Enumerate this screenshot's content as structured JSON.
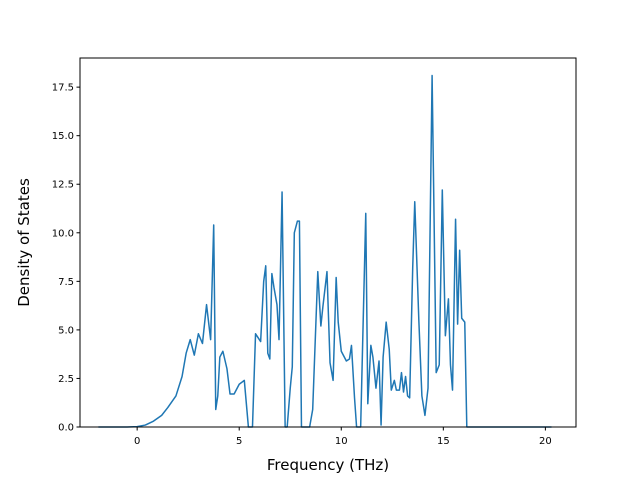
{
  "chart_data": {
    "type": "line",
    "title": "",
    "xlabel": "Frequency (THz)",
    "ylabel": "Density of States",
    "xlim": [
      -2.8,
      21.5
    ],
    "ylim": [
      0,
      19
    ],
    "grid": false,
    "legend": "none",
    "xticks": [
      0,
      5,
      10,
      15,
      20
    ],
    "xtick_labels": [
      "0",
      "5",
      "10",
      "15",
      "20"
    ],
    "yticks": [
      0.0,
      2.5,
      5.0,
      7.5,
      10.0,
      12.5,
      15.0,
      17.5
    ],
    "ytick_labels": [
      "0.0",
      "2.5",
      "5.0",
      "7.5",
      "10.0",
      "12.5",
      "15.0",
      "17.5"
    ],
    "series": [
      {
        "color": "#1f77b4",
        "x": [
          -1.9,
          -0.5,
          0.0,
          0.4,
          0.8,
          1.2,
          1.5,
          1.9,
          2.2,
          2.4,
          2.6,
          2.8,
          3.0,
          3.2,
          3.4,
          3.6,
          3.75,
          3.85,
          3.95,
          4.05,
          4.2,
          4.4,
          4.55,
          4.75,
          5.0,
          5.25,
          5.45,
          5.55,
          5.65,
          5.8,
          6.05,
          6.2,
          6.3,
          6.4,
          6.5,
          6.6,
          6.7,
          6.85,
          6.95,
          7.1,
          7.25,
          7.35,
          7.5,
          7.6,
          7.7,
          7.85,
          7.95,
          8.05,
          8.2,
          8.3,
          8.45,
          8.6,
          8.85,
          9.0,
          9.1,
          9.3,
          9.45,
          9.6,
          9.75,
          9.85,
          10.0,
          10.25,
          10.4,
          10.5,
          10.65,
          10.75,
          10.95,
          11.2,
          11.3,
          11.45,
          11.55,
          11.7,
          11.85,
          11.95,
          12.05,
          12.2,
          12.35,
          12.45,
          12.6,
          12.7,
          12.85,
          12.95,
          13.05,
          13.15,
          13.25,
          13.35,
          13.5,
          13.6,
          13.8,
          13.95,
          14.1,
          14.25,
          14.45,
          14.65,
          14.8,
          14.95,
          15.1,
          15.25,
          15.35,
          15.45,
          15.6,
          15.7,
          15.8,
          15.9,
          16.05,
          16.15,
          16.25,
          16.35,
          16.5,
          16.65,
          16.85,
          17.5,
          18.2,
          18.4,
          18.55,
          18.65,
          18.75,
          19.5,
          20.3
        ],
        "y": [
          0.0,
          0.0,
          0.02,
          0.1,
          0.3,
          0.6,
          1.0,
          1.6,
          2.6,
          3.8,
          4.5,
          3.7,
          4.8,
          4.3,
          6.3,
          4.5,
          10.4,
          0.9,
          1.6,
          3.6,
          3.9,
          3.0,
          1.7,
          1.7,
          2.2,
          2.4,
          0.0,
          0.0,
          0.0,
          4.8,
          4.4,
          7.5,
          8.3,
          3.8,
          3.5,
          7.9,
          7.2,
          6.3,
          4.5,
          12.1,
          0.0,
          0.0,
          2.0,
          3.1,
          10.0,
          10.6,
          10.6,
          0.0,
          0.0,
          0.0,
          0.0,
          0.9,
          8.0,
          5.2,
          6.2,
          8.0,
          3.3,
          2.4,
          7.7,
          5.4,
          3.9,
          3.4,
          3.5,
          4.2,
          1.5,
          0.0,
          0.0,
          11.0,
          1.2,
          4.2,
          3.6,
          2.0,
          3.4,
          0.1,
          3.6,
          5.4,
          4.0,
          1.9,
          2.4,
          1.9,
          1.9,
          2.8,
          1.8,
          2.6,
          1.6,
          1.5,
          8.2,
          11.6,
          5.5,
          1.6,
          0.6,
          2.0,
          18.1,
          2.8,
          3.2,
          12.2,
          4.7,
          6.6,
          3.2,
          1.9,
          10.7,
          5.3,
          9.1,
          5.6,
          5.4,
          0.0,
          0.0,
          0.0,
          0.0,
          0.0,
          0.0,
          0.0,
          0.0,
          0.0,
          0.0,
          0.0,
          0.0,
          0.0,
          0.0
        ]
      }
    ]
  }
}
